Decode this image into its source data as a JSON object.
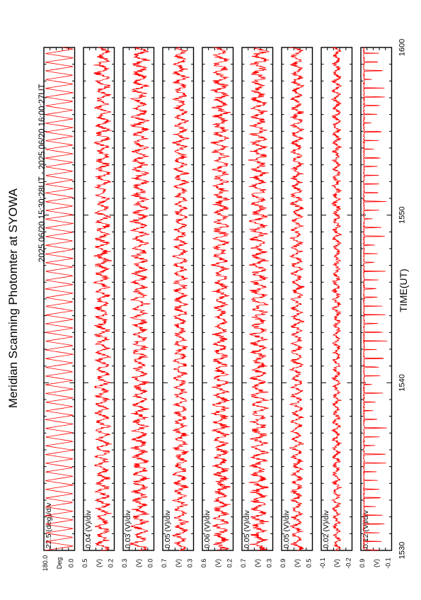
{
  "title": "Meridian Scanning Photomter at SYOWA",
  "subtitle": "2025 06/20 15:30:28UT - 2025 06/20 16:00:27UT",
  "chart_data": {
    "type": "line",
    "title": "Meridian Scanning Photomter at SYOWA",
    "subtitle": "2025 06/20 15:30:28UT - 2025 06/20 16:00:27UT",
    "xlabel": "TIME(UT)",
    "x_ticks": [
      "1530",
      "1540",
      "1550",
      "1600"
    ],
    "xlim_minutes": [
      0,
      30
    ],
    "grid": false,
    "orientation": "rotated 90 degrees counter-clockwise",
    "line_color": "#ff0000",
    "panels": [
      {
        "scale": "22.5 (deg)/div",
        "unit": "Deg",
        "ymax": "180.0",
        "ymin": "0.0",
        "pattern": "sawtooth",
        "period_min": 0.52,
        "mean": 0.5,
        "amp": 0.46,
        "noise": 0.0
      },
      {
        "scale": "0.04 (V)/div",
        "unit": "(V)",
        "ymax": "0.5",
        "ymin": "0.2",
        "pattern": "noise",
        "period_min": 0.52,
        "mean": 0.62,
        "amp": 0.2,
        "noise": 0.12
      },
      {
        "scale": "0.03 (V)/div",
        "unit": "(V)",
        "ymax": "0.3",
        "ymin": "0.0",
        "pattern": "noise",
        "period_min": 0.52,
        "mean": 0.55,
        "amp": 0.22,
        "noise": 0.14
      },
      {
        "scale": "0.05 (V)/div",
        "unit": "(V)",
        "ymax": "0.7",
        "ymin": "0.3",
        "pattern": "noise",
        "period_min": 0.52,
        "mean": 0.58,
        "amp": 0.18,
        "noise": 0.12
      },
      {
        "scale": "0.06 (V)/div",
        "unit": "(V)",
        "ymax": "0.6",
        "ymin": "0.2",
        "pattern": "noise",
        "period_min": 0.52,
        "mean": 0.6,
        "amp": 0.2,
        "noise": 0.14
      },
      {
        "scale": "0.05 (V)/div",
        "unit": "(V)",
        "ymax": "0.7",
        "ymin": "0.3",
        "pattern": "noise",
        "period_min": 0.52,
        "mean": 0.55,
        "amp": 0.22,
        "noise": 0.14
      },
      {
        "scale": "0.05 (V)/div",
        "unit": "(V)",
        "ymax": "0.9",
        "ymin": "0.5",
        "pattern": "noise",
        "period_min": 0.52,
        "mean": 0.5,
        "amp": 0.16,
        "noise": 0.1
      },
      {
        "scale": "0.02 (V)/div",
        "unit": "(V)",
        "ymax": "-0.1",
        "ymin": "-0.2",
        "pattern": "noise",
        "period_min": 0.52,
        "mean": 0.5,
        "amp": 0.1,
        "noise": 0.08
      },
      {
        "scale": "0.12 (V)/div",
        "unit": "(V)",
        "ymax": "0.9",
        "ymin": "-0.1",
        "pattern": "spikes",
        "period_min": 0.52,
        "mean": 0.1,
        "amp": 0.75,
        "noise": 0.04
      }
    ]
  }
}
